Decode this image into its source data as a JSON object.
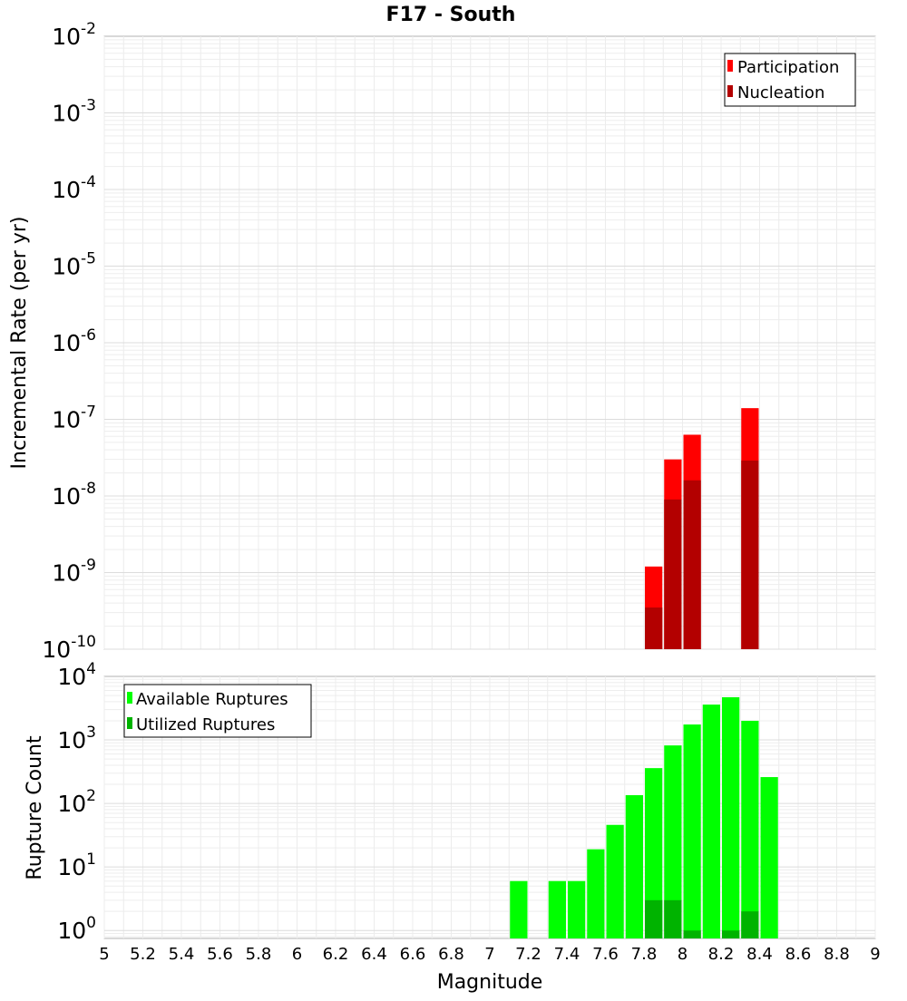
{
  "figure": {
    "title": "F17 - South"
  },
  "chart_data": [
    {
      "type": "bar",
      "title": "F17 - South",
      "xlabel": "",
      "ylabel": "Incremental Rate (per yr)",
      "yscale": "log",
      "ylim": [
        1e-10,
        0.01
      ],
      "xlim": [
        5,
        9
      ],
      "bar_width": 0.1,
      "grid": true,
      "legend_position": "top-right",
      "ytick_labels": [
        {
          "base": "10",
          "exp": "-10",
          "value": 1e-10
        },
        {
          "base": "10",
          "exp": "-9",
          "value": 1e-09
        },
        {
          "base": "10",
          "exp": "-8",
          "value": 1e-08
        },
        {
          "base": "10",
          "exp": "-7",
          "value": 1e-07
        },
        {
          "base": "10",
          "exp": "-6",
          "value": 1e-06
        },
        {
          "base": "10",
          "exp": "-5",
          "value": 1e-05
        },
        {
          "base": "10",
          "exp": "-4",
          "value": 0.0001
        },
        {
          "base": "10",
          "exp": "-3",
          "value": 0.001
        },
        {
          "base": "10",
          "exp": "-2",
          "value": 0.01
        }
      ],
      "series": [
        {
          "name": "Participation",
          "color": "#ff0000",
          "points": [
            {
              "x": 7.85,
              "y": 1.2e-09
            },
            {
              "x": 7.95,
              "y": 3e-08
            },
            {
              "x": 8.05,
              "y": 6.3e-08
            },
            {
              "x": 8.35,
              "y": 1.4e-07
            }
          ]
        },
        {
          "name": "Nucleation",
          "color": "#b30000",
          "points": [
            {
              "x": 7.85,
              "y": 3.5e-10
            },
            {
              "x": 7.95,
              "y": 9e-09
            },
            {
              "x": 8.05,
              "y": 1.6e-08
            },
            {
              "x": 8.35,
              "y": 2.9e-08
            }
          ]
        }
      ]
    },
    {
      "type": "bar",
      "title": "",
      "xlabel": "Magnitude",
      "ylabel": "Rupture Count",
      "yscale": "log",
      "ylim": [
        0.75,
        10000
      ],
      "xlim": [
        5,
        9
      ],
      "bar_width": 0.1,
      "grid": true,
      "legend_position": "top-left",
      "xtick_labels": [
        "5",
        "5.2",
        "5.4",
        "5.6",
        "5.8",
        "6",
        "6.2",
        "6.4",
        "6.6",
        "6.8",
        "7",
        "7.2",
        "7.4",
        "7.6",
        "7.8",
        "8",
        "8.2",
        "8.4",
        "8.6",
        "8.8",
        "9"
      ],
      "ytick_labels": [
        {
          "base": "10",
          "exp": "0",
          "value": 1
        },
        {
          "base": "10",
          "exp": "1",
          "value": 10
        },
        {
          "base": "10",
          "exp": "2",
          "value": 100
        },
        {
          "base": "10",
          "exp": "3",
          "value": 1000
        },
        {
          "base": "10",
          "exp": "4",
          "value": 10000
        }
      ],
      "series": [
        {
          "name": "Available Ruptures",
          "color": "#00ff00",
          "points": [
            {
              "x": 7.15,
              "y": 6
            },
            {
              "x": 7.35,
              "y": 6
            },
            {
              "x": 7.45,
              "y": 6
            },
            {
              "x": 7.55,
              "y": 19
            },
            {
              "x": 7.65,
              "y": 46
            },
            {
              "x": 7.75,
              "y": 135
            },
            {
              "x": 7.85,
              "y": 360
            },
            {
              "x": 7.95,
              "y": 820
            },
            {
              "x": 8.05,
              "y": 1750
            },
            {
              "x": 8.15,
              "y": 3600
            },
            {
              "x": 8.25,
              "y": 4700
            },
            {
              "x": 8.35,
              "y": 2000
            },
            {
              "x": 8.45,
              "y": 260
            }
          ]
        },
        {
          "name": "Utilized Ruptures",
          "color": "#00b300",
          "points": [
            {
              "x": 7.85,
              "y": 3
            },
            {
              "x": 7.95,
              "y": 3
            },
            {
              "x": 8.05,
              "y": 1
            },
            {
              "x": 8.25,
              "y": 1
            },
            {
              "x": 8.35,
              "y": 2
            }
          ]
        }
      ]
    }
  ]
}
